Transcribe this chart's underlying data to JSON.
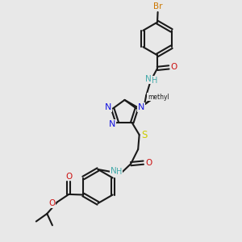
{
  "bg_color": "#e8e8e8",
  "bond_color": "#1a1a1a",
  "N_color": "#1515e0",
  "O_color": "#cc1111",
  "S_color": "#cccc00",
  "Br_color": "#cc7700",
  "NH_color": "#44aaaa",
  "figsize": [
    3.0,
    3.0
  ],
  "dpi": 100,
  "xlim": [
    0,
    10
  ],
  "ylim": [
    0,
    10
  ]
}
